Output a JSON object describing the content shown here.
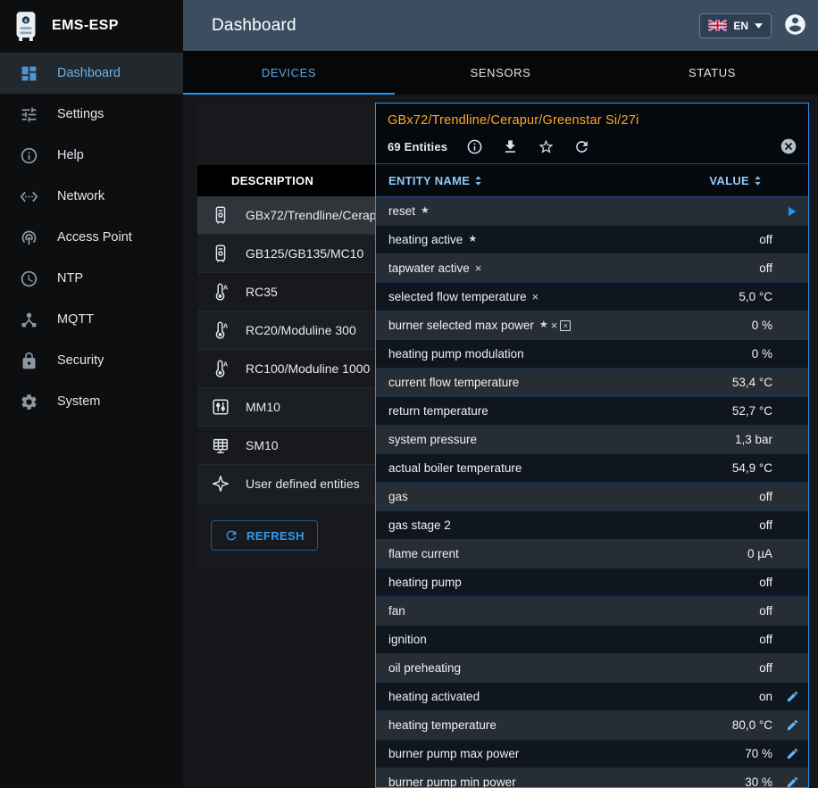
{
  "colors": {
    "accent_blue": "#2196f3",
    "active_tab_blue": "#5ea9e8",
    "table_header_blue": "#90caf9",
    "device_title_orange": "#ffa726",
    "appbar_background": "#3a4e60"
  },
  "app": {
    "name": "EMS-ESP",
    "page_title": "Dashboard"
  },
  "header": {
    "language_label": "EN"
  },
  "sidebar": {
    "items": [
      {
        "label": "Dashboard",
        "icon": "dashboard-icon",
        "active": true
      },
      {
        "label": "Settings",
        "icon": "settings-icon",
        "active": false
      },
      {
        "label": "Help",
        "icon": "help-icon",
        "active": false
      },
      {
        "label": "Network",
        "icon": "network-icon",
        "active": false
      },
      {
        "label": "Access Point",
        "icon": "access-point-icon",
        "active": false
      },
      {
        "label": "NTP",
        "icon": "ntp-icon",
        "active": false
      },
      {
        "label": "MQTT",
        "icon": "mqtt-icon",
        "active": false
      },
      {
        "label": "Security",
        "icon": "security-icon",
        "active": false
      },
      {
        "label": "System",
        "icon": "system-icon",
        "active": false
      }
    ]
  },
  "tabs": [
    {
      "label": "DEVICES",
      "active": true
    },
    {
      "label": "SENSORS",
      "active": false
    },
    {
      "label": "STATUS",
      "active": false
    }
  ],
  "device_panel": {
    "column_header": "DESCRIPTION",
    "refresh_label": "REFRESH",
    "devices": [
      {
        "name": "GBx72/Trendline/Cerapur/Greenstar Si/27i",
        "icon": "boiler-icon",
        "selected": true
      },
      {
        "name": "GB125/GB135/MC10",
        "icon": "boiler-icon",
        "selected": false
      },
      {
        "name": "RC35",
        "icon": "thermostat-icon",
        "selected": false
      },
      {
        "name": "RC20/Moduline 300",
        "icon": "thermostat-icon",
        "selected": false
      },
      {
        "name": "RC100/Moduline 1000",
        "icon": "thermostat-icon",
        "selected": false
      },
      {
        "name": "MM10",
        "icon": "mixer-icon",
        "selected": false
      },
      {
        "name": "SM10",
        "icon": "solar-icon",
        "selected": false
      },
      {
        "name": "User defined entities",
        "icon": "custom-entities-icon",
        "selected": false
      }
    ]
  },
  "entity_panel": {
    "title": "GBx72/Trendline/Cerapur/Greenstar Si/27i",
    "entities_count": "69 Entities",
    "toolbar_icons": [
      "info-icon",
      "download-icon",
      "star-icon",
      "refresh-icon",
      "close-icon"
    ],
    "columns": {
      "name": "ENTITY NAME",
      "value": "VALUE"
    },
    "marker_glyphs": {
      "favorite": "★",
      "excluded": "×",
      "web-excluded": "×"
    },
    "rows": [
      {
        "name": "reset",
        "markers": [
          "favorite"
        ],
        "value": "",
        "action": "play"
      },
      {
        "name": "heating active",
        "markers": [
          "favorite"
        ],
        "value": "off",
        "action": null
      },
      {
        "name": "tapwater active",
        "markers": [
          "excluded"
        ],
        "value": "off",
        "action": null
      },
      {
        "name": "selected flow temperature",
        "markers": [
          "excluded"
        ],
        "value": "5,0 °C",
        "action": null
      },
      {
        "name": "burner selected max power",
        "markers": [
          "favorite",
          "excluded",
          "web-excluded"
        ],
        "value": "0 %",
        "action": null
      },
      {
        "name": "heating pump modulation",
        "markers": [],
        "value": "0 %",
        "action": null
      },
      {
        "name": "current flow temperature",
        "markers": [],
        "value": "53,4 °C",
        "action": null
      },
      {
        "name": "return temperature",
        "markers": [],
        "value": "52,7 °C",
        "action": null
      },
      {
        "name": "system pressure",
        "markers": [],
        "value": "1,3 bar",
        "action": null
      },
      {
        "name": "actual boiler temperature",
        "markers": [],
        "value": "54,9 °C",
        "action": null
      },
      {
        "name": "gas",
        "markers": [],
        "value": "off",
        "action": null
      },
      {
        "name": "gas stage 2",
        "markers": [],
        "value": "off",
        "action": null
      },
      {
        "name": "flame current",
        "markers": [],
        "value": "0 µA",
        "action": null
      },
      {
        "name": "heating pump",
        "markers": [],
        "value": "off",
        "action": null
      },
      {
        "name": "fan",
        "markers": [],
        "value": "off",
        "action": null
      },
      {
        "name": "ignition",
        "markers": [],
        "value": "off",
        "action": null
      },
      {
        "name": "oil preheating",
        "markers": [],
        "value": "off",
        "action": null
      },
      {
        "name": "heating activated",
        "markers": [],
        "value": "on",
        "action": "edit"
      },
      {
        "name": "heating temperature",
        "markers": [],
        "value": "80,0 °C",
        "action": "edit"
      },
      {
        "name": "burner pump max power",
        "markers": [],
        "value": "70 %",
        "action": "edit"
      },
      {
        "name": "burner pump min power",
        "markers": [],
        "value": "30 %",
        "action": "edit"
      }
    ]
  }
}
